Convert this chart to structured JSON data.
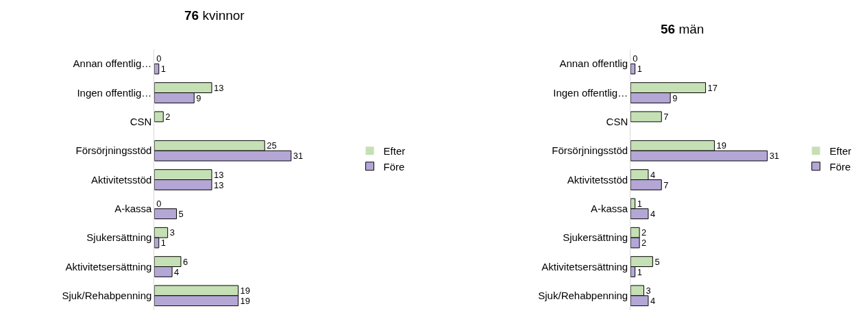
{
  "chart_data": [
    {
      "type": "bar",
      "orientation": "horizontal",
      "title": "76 kvinnor",
      "categories": [
        "Annan offentlig…",
        "Ingen offentlig…",
        "CSN",
        "Försörjningsstöd",
        "Aktivitetsstöd",
        "A-kassa",
        "Sjukersättning",
        "Aktivitetsersättning",
        "Sjuk/Rehabpenning"
      ],
      "series": [
        {
          "name": "Efter",
          "color": "#c5e0b4",
          "values": [
            0,
            13,
            2,
            25,
            13,
            0,
            3,
            6,
            19
          ]
        },
        {
          "name": "Före",
          "color": "#b4a7d6",
          "values": [
            1,
            9,
            null,
            31,
            13,
            5,
            1,
            4,
            19
          ]
        }
      ],
      "data_labels": true,
      "legend": "right",
      "tick_labels": "y"
    },
    {
      "type": "bar",
      "orientation": "horizontal",
      "title": "56 män",
      "categories": [
        "Annan offentlig",
        "Ingen offentlig…",
        "CSN",
        "Försörjningsstöd",
        "Aktivitetsstöd",
        "A-kassa",
        "Sjukersättning",
        "Aktivitetsersättning",
        "Sjuk/Rehabpenning"
      ],
      "series": [
        {
          "name": "Efter",
          "color": "#c5e0b4",
          "values": [
            0,
            17,
            7,
            19,
            4,
            1,
            2,
            5,
            3
          ]
        },
        {
          "name": "Före",
          "color": "#b4a7d6",
          "values": [
            1,
            9,
            null,
            31,
            7,
            4,
            2,
            1,
            4
          ]
        }
      ],
      "data_labels": true,
      "legend": "right",
      "tick_labels": "y"
    }
  ]
}
